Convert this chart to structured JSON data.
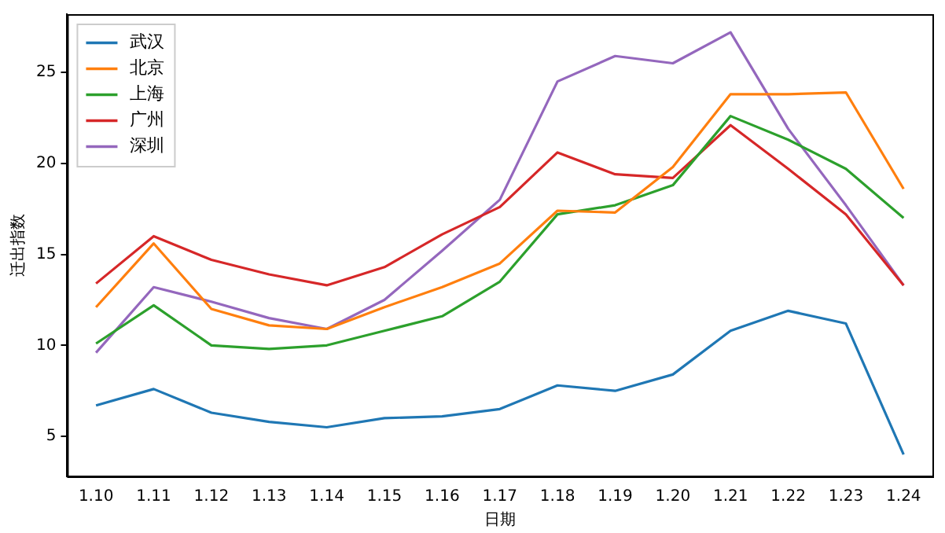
{
  "chart_data": {
    "type": "line",
    "xlabel": "日期",
    "ylabel": "迁出指数",
    "categories": [
      "1.10",
      "1.11",
      "1.12",
      "1.13",
      "1.14",
      "1.15",
      "1.16",
      "1.17",
      "1.18",
      "1.19",
      "1.20",
      "1.21",
      "1.22",
      "1.23",
      "1.24"
    ],
    "series": [
      {
        "name": "武汉",
        "color": "#1f77b4",
        "values": [
          6.7,
          7.6,
          6.3,
          5.8,
          5.5,
          6.0,
          6.1,
          6.5,
          7.8,
          7.5,
          8.4,
          10.8,
          11.9,
          11.2,
          4.0
        ]
      },
      {
        "name": "北京",
        "color": "#ff7f0e",
        "values": [
          12.1,
          15.6,
          12.0,
          11.1,
          10.9,
          12.1,
          13.2,
          14.5,
          17.4,
          17.3,
          19.8,
          23.8,
          23.8,
          23.9,
          18.6
        ]
      },
      {
        "name": "上海",
        "color": "#2ca02c",
        "values": [
          10.1,
          12.2,
          10.0,
          9.8,
          10.0,
          10.8,
          11.6,
          13.5,
          17.2,
          17.7,
          18.8,
          22.6,
          21.3,
          19.7,
          17.0
        ]
      },
      {
        "name": "广州",
        "color": "#d62728",
        "values": [
          13.4,
          16.0,
          14.7,
          13.9,
          13.3,
          14.3,
          16.1,
          17.6,
          20.6,
          19.4,
          19.2,
          22.1,
          19.7,
          17.2,
          13.3
        ]
      },
      {
        "name": "深圳",
        "color": "#9467bd",
        "values": [
          9.6,
          13.2,
          12.4,
          11.5,
          10.9,
          12.5,
          15.2,
          18.0,
          24.5,
          25.9,
          25.5,
          27.2,
          21.9,
          17.7,
          13.3
        ]
      }
    ],
    "ylim": [
      2.8,
      28.2
    ],
    "yticks": [
      5,
      10,
      15,
      20,
      25
    ],
    "grid": false,
    "legend": "top left",
    "marker": "none",
    "line_style": "solid"
  }
}
